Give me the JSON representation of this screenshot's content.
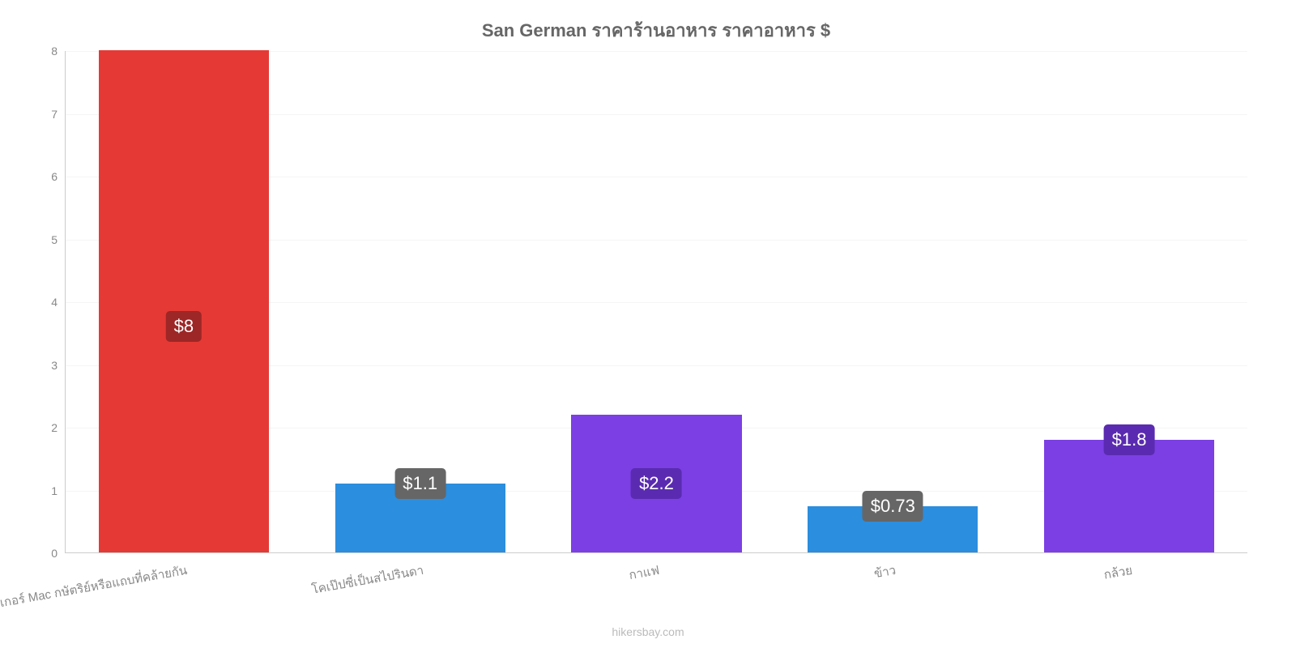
{
  "chart": {
    "type": "bar",
    "title": "San German ราคาร้านอาหาร ราคาอาหาร $",
    "title_fontsize": 22,
    "title_color": "#666666",
    "background_color": "#ffffff",
    "grid_color": "#f5f5f5",
    "axis_color": "#cccccc",
    "label_color": "#888888",
    "label_fontsize": 14,
    "xlabel_fontsize": 15,
    "value_label_fontsize": 22,
    "ylim": [
      0,
      8
    ],
    "ytick_step": 1,
    "yticks": [
      0,
      1,
      2,
      3,
      4,
      5,
      6,
      7,
      8
    ],
    "bar_width": 0.72,
    "categories": [
      "เบอร์เกอร์ Mac กษัตริย์หรือแถบที่คล้ายกัน",
      "โคเป๊ปซี่เป็นสไปรินดา",
      "กาแฟ",
      "ข้าว",
      "กล้วย"
    ],
    "values": [
      8,
      1.1,
      2.2,
      0.73,
      1.8
    ],
    "display_values": [
      "$8",
      "$1.1",
      "$2.2",
      "$0.73",
      "$1.8"
    ],
    "bar_colors": [
      "#e53935",
      "#2b8ede",
      "#7b3fe4",
      "#2b8ede",
      "#7b3fe4"
    ],
    "badge_colors": [
      "#9d2626",
      "#666666",
      "#5a2bb0",
      "#666666",
      "#5a2bb0"
    ],
    "source_label": "hikersbay.com",
    "source_color": "#bbbbbb"
  }
}
